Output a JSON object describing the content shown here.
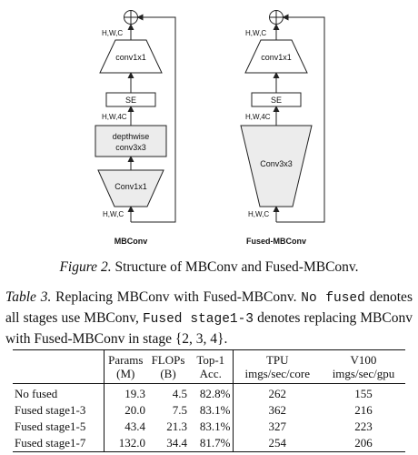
{
  "figure": {
    "mbconv": {
      "title": "MBConv",
      "top_label": "H,W,C",
      "conv_top": "conv1x1",
      "se": "SE",
      "mid_label": "H,W,4C",
      "dw_line1": "depthwise",
      "dw_line2": "conv3x3",
      "conv_bottom": "Conv1x1",
      "bottom_label": "H,W,C"
    },
    "fused": {
      "title": "Fused-MBConv",
      "top_label": "H,W,C",
      "conv_top": "conv1x1",
      "se": "SE",
      "mid_label": "H,W,4C",
      "conv3": "Conv3x3",
      "bottom_label": "H,W,C"
    },
    "caption_label": "Figure 2.",
    "caption_text": "Structure of MBConv and Fused-MBConv."
  },
  "table": {
    "caption_label": "Table 3.",
    "caption_part1": "Replacing MBConv with Fused-MBConv.",
    "caption_mono1": "No fused",
    "caption_part2": "denotes all stages use MBConv,",
    "caption_mono2": "Fused stage1-3",
    "caption_part3": "denotes replacing MBConv with Fused-MBConv in stage {2, 3, 4}.",
    "headers": {
      "params": "Params",
      "params_unit": "(M)",
      "flops": "FLOPs",
      "flops_unit": "(B)",
      "top1": "Top-1",
      "top1_unit": "Acc.",
      "tpu": "TPU",
      "tpu_unit": "imgs/sec/core",
      "v100": "V100",
      "v100_unit": "imgs/sec/gpu"
    },
    "rows": [
      {
        "name": "No fused",
        "params": "19.3",
        "flops": "4.5",
        "acc": "82.8%",
        "tpu": "262",
        "v100": "155"
      },
      {
        "name": "Fused stage1-3",
        "params": "20.0",
        "flops": "7.5",
        "acc": "83.1%",
        "tpu": "362",
        "v100": "216"
      },
      {
        "name": "Fused stage1-5",
        "params": "43.4",
        "flops": "21.3",
        "acc": "83.1%",
        "tpu": "327",
        "v100": "223"
      },
      {
        "name": "Fused stage1-7",
        "params": "132.0",
        "flops": "34.4",
        "acc": "81.7%",
        "tpu": "254",
        "v100": "206"
      }
    ]
  }
}
